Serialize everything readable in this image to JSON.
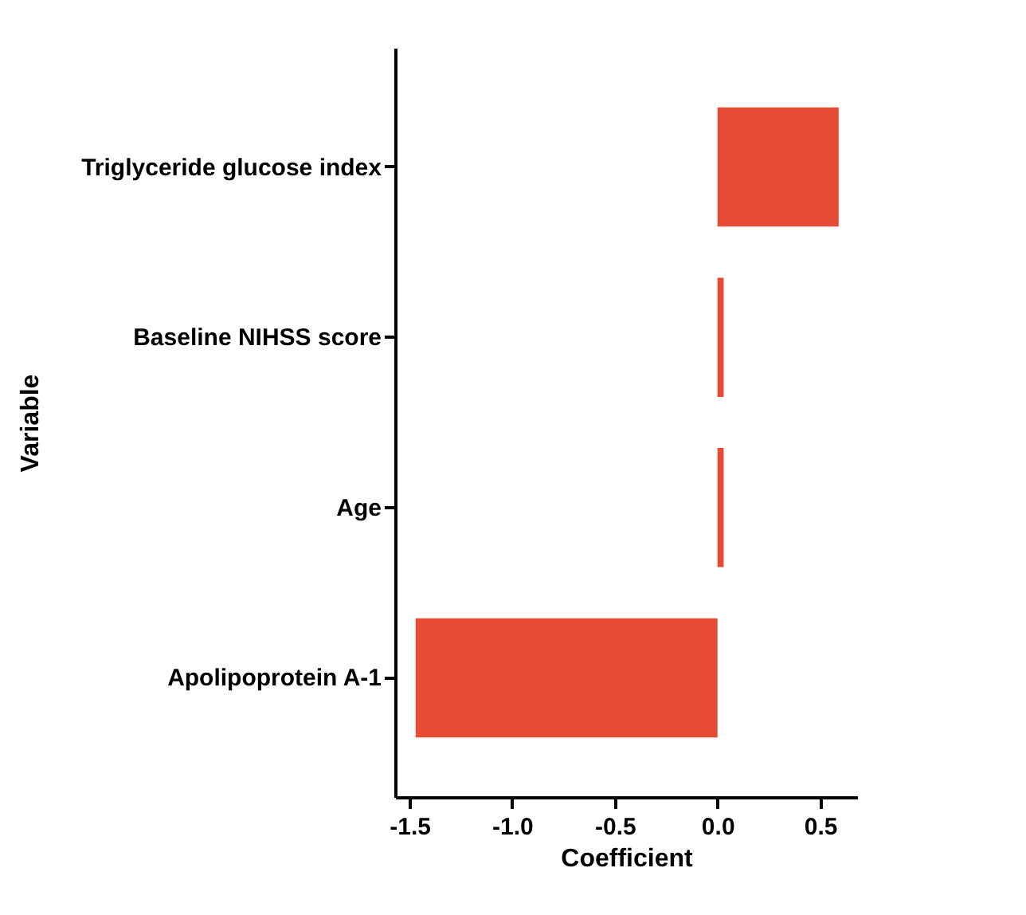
{
  "chart_data": {
    "type": "bar",
    "orientation": "horizontal",
    "xlabel": "Coefficient",
    "ylabel": "Variable",
    "categories": [
      "Triglyceride glucose index",
      "Baseline NIHSS score",
      "Age",
      "Apolipoprotein A-1"
    ],
    "values": [
      0.59,
      0.03,
      0.03,
      -1.47
    ],
    "color": "#e64b35",
    "xlim": [
      -1.57,
      0.68
    ],
    "xticks": [
      {
        "value": -1.5,
        "label": "-1.5"
      },
      {
        "value": -1.0,
        "label": "-1.0"
      },
      {
        "value": -0.5,
        "label": "-0.5"
      },
      {
        "value": 0.0,
        "label": "0.0"
      },
      {
        "value": 0.5,
        "label": "0.5"
      }
    ],
    "grid": false
  }
}
